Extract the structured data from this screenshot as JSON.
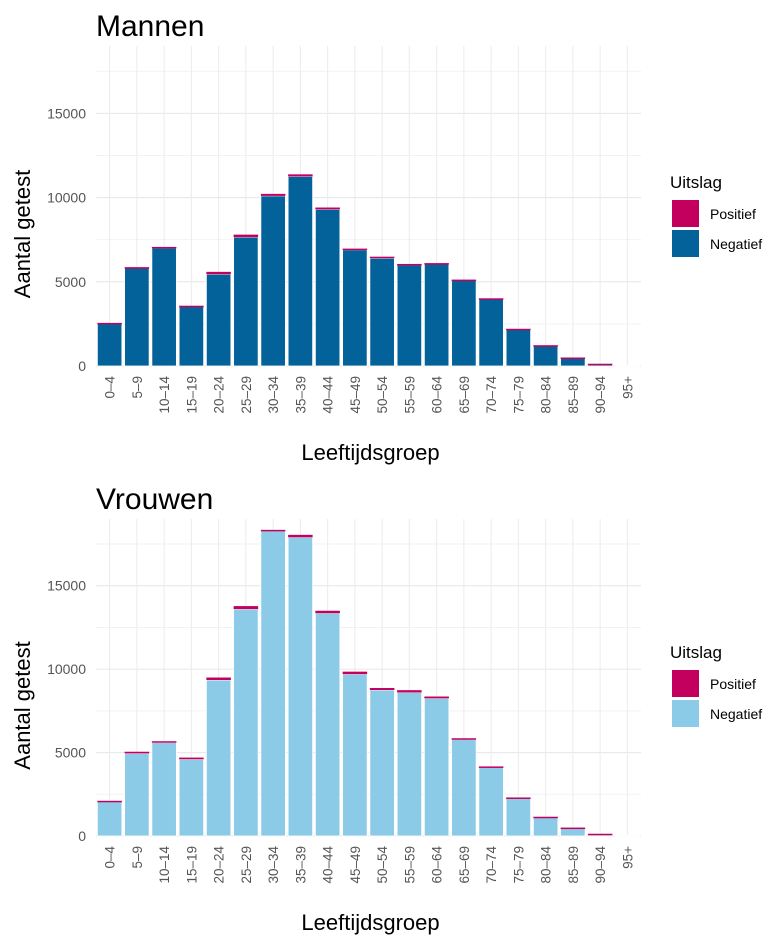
{
  "chart_data": [
    {
      "type": "bar",
      "stacked": true,
      "title": "Mannen",
      "xlabel": "Leeftijdsgroep",
      "ylabel": "Aantal getest",
      "ylim": [
        0,
        19000
      ],
      "yticks": [
        0,
        5000,
        10000,
        15000
      ],
      "grid": true,
      "legend": {
        "title": "Uitslag",
        "position": "right",
        "entries": [
          "Positief",
          "Negatief"
        ]
      },
      "categories": [
        "0–4",
        "5–9",
        "10–14",
        "15–19",
        "20–24",
        "25–29",
        "30–34",
        "35–39",
        "40–44",
        "45–49",
        "50–54",
        "55–59",
        "60–64",
        "65–69",
        "70–74",
        "75–79",
        "80–84",
        "85–89",
        "90–94",
        "95+"
      ],
      "series": [
        {
          "name": "Negatief",
          "color": "#03629a",
          "values": [
            2550,
            5850,
            7000,
            3550,
            5450,
            7650,
            10100,
            11250,
            9300,
            6900,
            6400,
            6000,
            6050,
            5100,
            4000,
            2200,
            1230,
            500,
            130,
            30
          ]
        },
        {
          "name": "Positief",
          "color": "#c4005f",
          "values": [
            10,
            20,
            70,
            30,
            140,
            150,
            120,
            130,
            110,
            70,
            90,
            60,
            60,
            30,
            20,
            10,
            5,
            5,
            5,
            0
          ]
        }
      ]
    },
    {
      "type": "bar",
      "stacked": true,
      "title": "Vrouwen",
      "xlabel": "Leeftijdsgroep",
      "ylabel": "Aantal getest",
      "ylim": [
        0,
        19000
      ],
      "yticks": [
        0,
        5000,
        10000,
        15000
      ],
      "grid": true,
      "legend": {
        "title": "Uitslag",
        "position": "right",
        "entries": [
          "Positief",
          "Negatief"
        ]
      },
      "categories": [
        "0–4",
        "5–9",
        "10–14",
        "15–19",
        "20–24",
        "25–29",
        "30–34",
        "35–39",
        "40–44",
        "45–49",
        "50–54",
        "55–59",
        "60–64",
        "65–69",
        "70–74",
        "75–79",
        "80–84",
        "85–89",
        "90–94",
        "95+"
      ],
      "series": [
        {
          "name": "Negatief",
          "color": "#8ccbe8",
          "values": [
            2100,
            4950,
            5600,
            4600,
            9350,
            13600,
            18300,
            17900,
            13350,
            9700,
            8750,
            8600,
            8250,
            5800,
            4150,
            2300,
            1150,
            500,
            130,
            40
          ]
        },
        {
          "name": "Positief",
          "color": "#c4005f",
          "values": [
            10,
            100,
            80,
            100,
            150,
            180,
            50,
            150,
            150,
            150,
            120,
            140,
            110,
            60,
            20,
            10,
            5,
            5,
            5,
            0
          ]
        }
      ]
    }
  ]
}
